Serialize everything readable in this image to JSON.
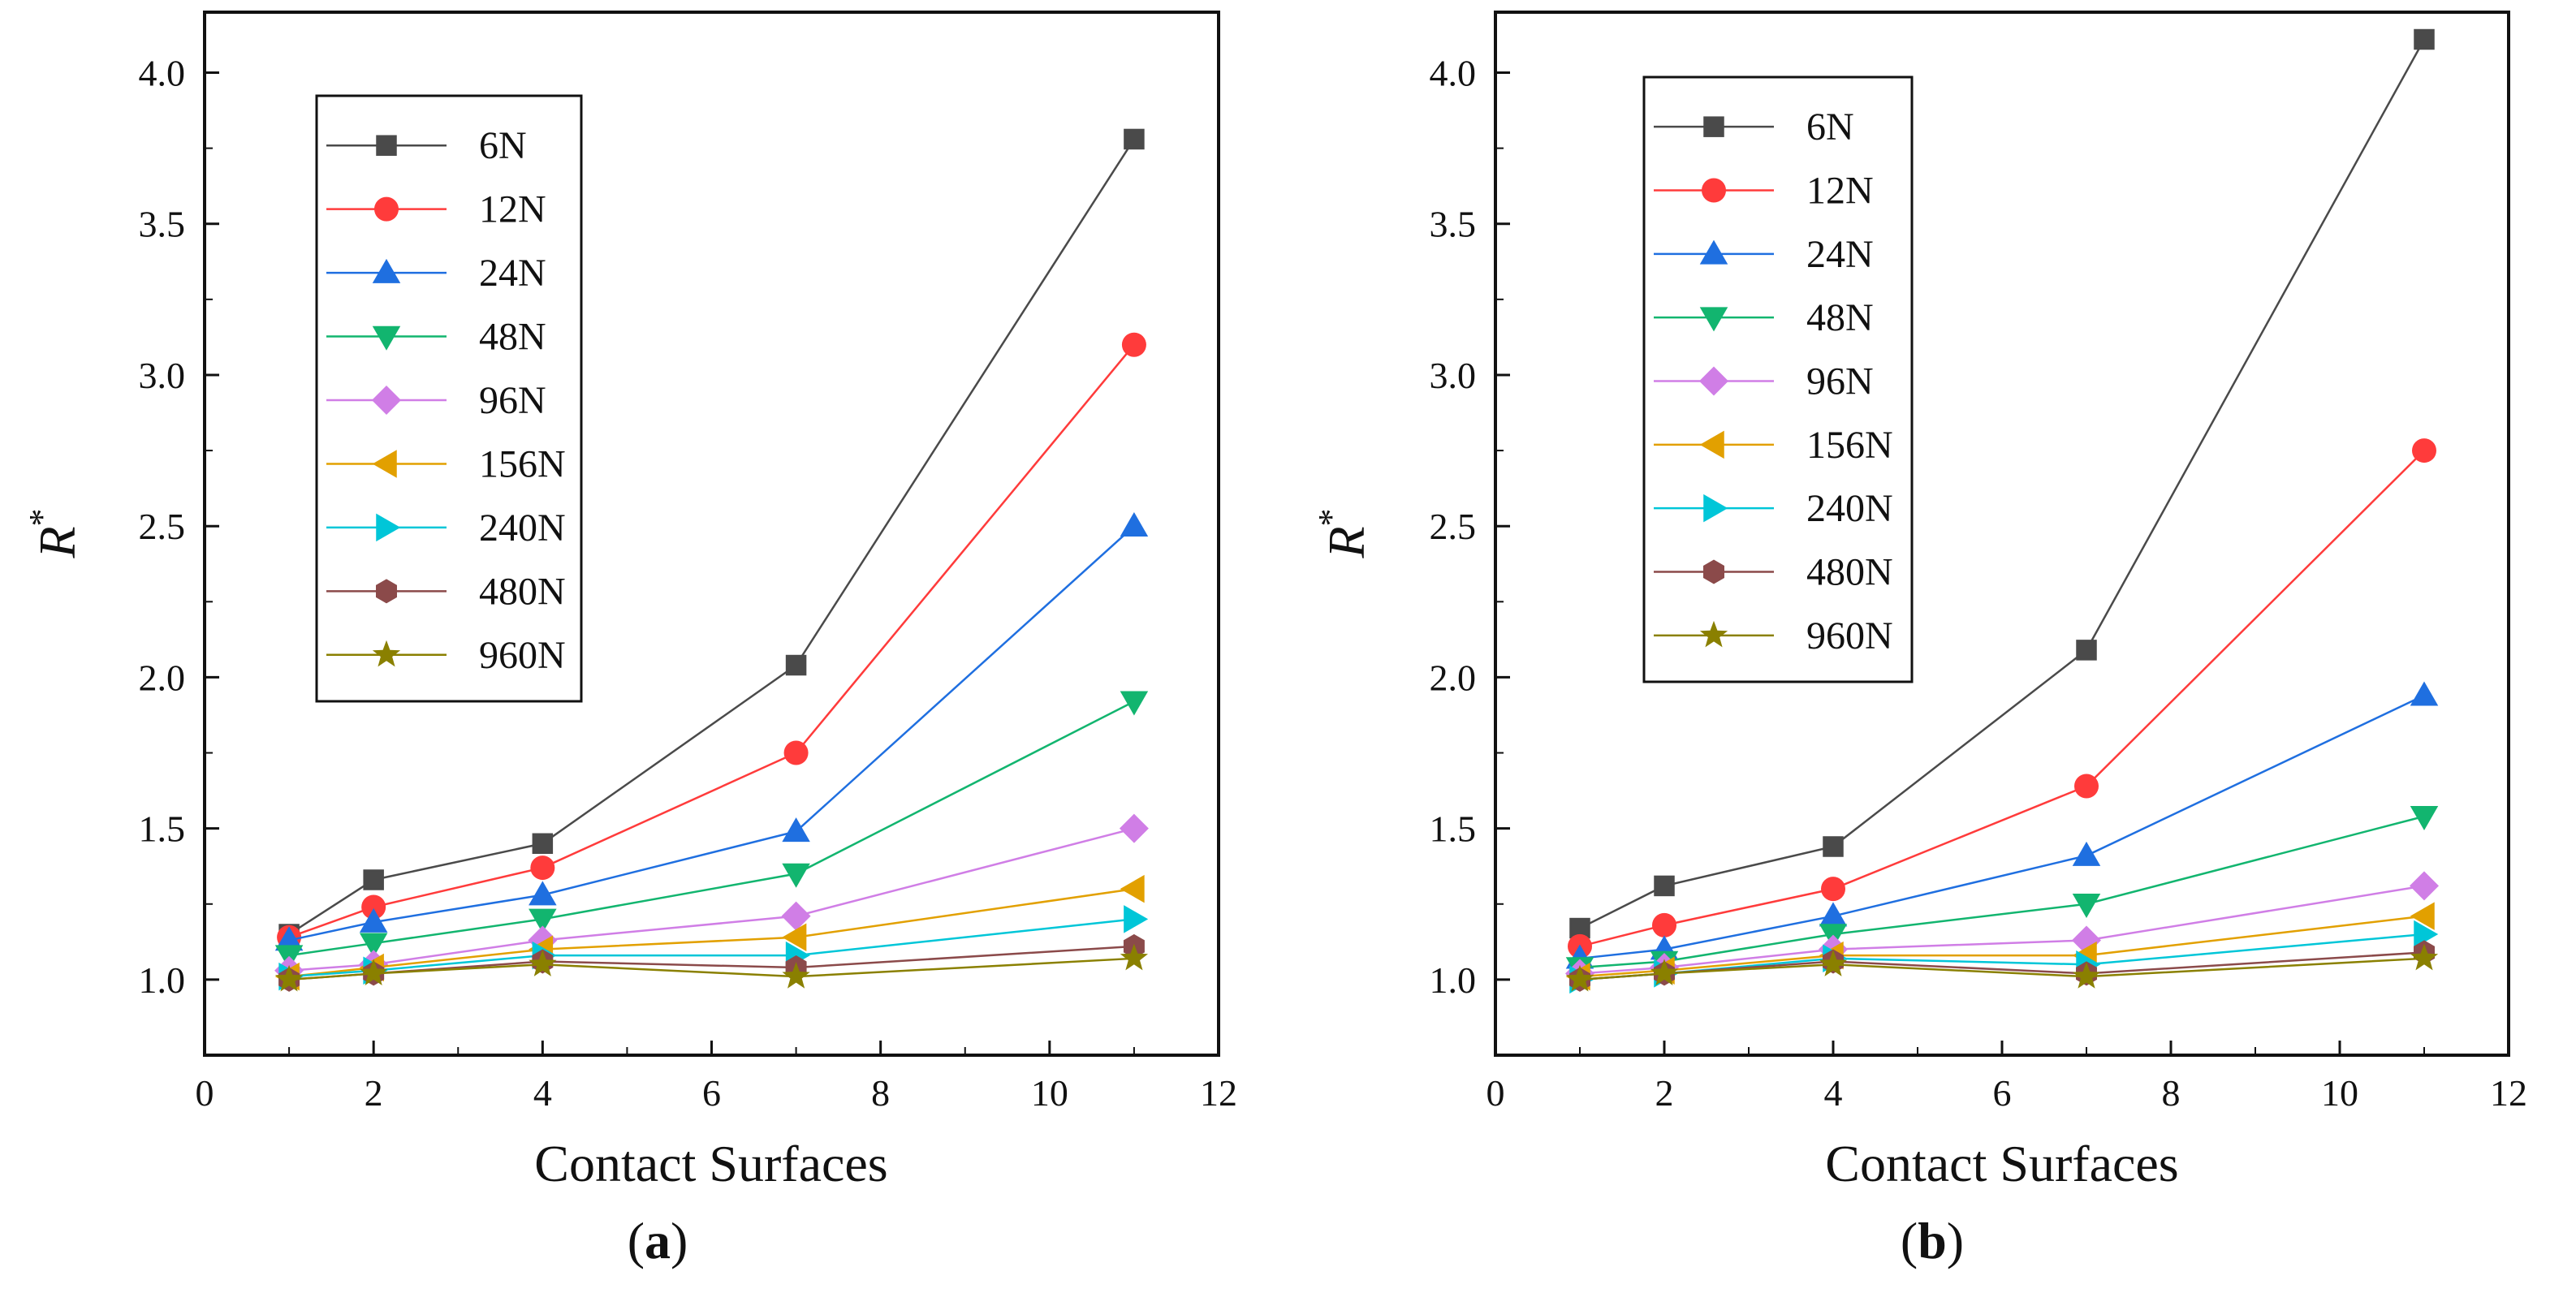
{
  "chart_data": [
    {
      "type": "line",
      "panel_label_prefix": "(",
      "panel_label_letter": "a",
      "panel_label_suffix": ")",
      "xlabel": "Contact Surfaces",
      "ylabel_main": "R",
      "ylabel_sup": "*",
      "xlim": [
        0,
        12
      ],
      "ylim": [
        0.75,
        4.2
      ],
      "xticks": [
        0,
        2,
        4,
        6,
        8,
        10,
        12
      ],
      "yticks": [
        1.0,
        1.5,
        2.0,
        2.5,
        3.0,
        3.5,
        4.0
      ],
      "legend_position": "top-left",
      "x": [
        1,
        2,
        4,
        7,
        11
      ],
      "series": [
        {
          "name": "6N",
          "color": "#4a4a4a",
          "marker": "square",
          "values": [
            1.15,
            1.33,
            1.45,
            2.04,
            3.78
          ]
        },
        {
          "name": "12N",
          "color": "#ff3b3b",
          "marker": "circle",
          "values": [
            1.14,
            1.24,
            1.37,
            1.75,
            3.1
          ]
        },
        {
          "name": "24N",
          "color": "#1f6fe0",
          "marker": "triangle-up",
          "values": [
            1.13,
            1.19,
            1.28,
            1.49,
            2.5
          ]
        },
        {
          "name": "48N",
          "color": "#12b56f",
          "marker": "triangle-down",
          "values": [
            1.08,
            1.12,
            1.2,
            1.35,
            1.92
          ]
        },
        {
          "name": "96N",
          "color": "#d07ee6",
          "marker": "diamond",
          "values": [
            1.03,
            1.05,
            1.13,
            1.21,
            1.5
          ]
        },
        {
          "name": "156N",
          "color": "#e2a000",
          "marker": "triangle-left",
          "values": [
            1.01,
            1.04,
            1.1,
            1.14,
            1.3
          ]
        },
        {
          "name": "240N",
          "color": "#00c6d8",
          "marker": "triangle-right",
          "values": [
            1.01,
            1.03,
            1.08,
            1.08,
            1.2
          ]
        },
        {
          "name": "480N",
          "color": "#8b4a4a",
          "marker": "hexagon",
          "values": [
            1.0,
            1.02,
            1.06,
            1.04,
            1.11
          ]
        },
        {
          "name": "960N",
          "color": "#8a8000",
          "marker": "star",
          "values": [
            1.0,
            1.02,
            1.05,
            1.01,
            1.07
          ]
        }
      ]
    },
    {
      "type": "line",
      "panel_label_prefix": "(",
      "panel_label_letter": "b",
      "panel_label_suffix": ")",
      "xlabel": "Contact Surfaces",
      "ylabel_main": "R",
      "ylabel_sup": "*",
      "xlim": [
        0,
        12
      ],
      "ylim": [
        0.75,
        4.2
      ],
      "xticks": [
        0,
        2,
        4,
        6,
        8,
        10,
        12
      ],
      "yticks": [
        1.0,
        1.5,
        2.0,
        2.5,
        3.0,
        3.5,
        4.0
      ],
      "legend_position": "top-left",
      "x": [
        1,
        2,
        4,
        7,
        11
      ],
      "series": [
        {
          "name": "6N",
          "color": "#4a4a4a",
          "marker": "square",
          "values": [
            1.17,
            1.31,
            1.44,
            2.09,
            4.11
          ]
        },
        {
          "name": "12N",
          "color": "#ff3b3b",
          "marker": "circle",
          "values": [
            1.11,
            1.18,
            1.3,
            1.64,
            2.75
          ]
        },
        {
          "name": "24N",
          "color": "#1f6fe0",
          "marker": "triangle-up",
          "values": [
            1.07,
            1.1,
            1.21,
            1.41,
            1.94
          ]
        },
        {
          "name": "48N",
          "color": "#12b56f",
          "marker": "triangle-down",
          "values": [
            1.04,
            1.06,
            1.15,
            1.25,
            1.54
          ]
        },
        {
          "name": "96N",
          "color": "#d07ee6",
          "marker": "diamond",
          "values": [
            1.02,
            1.04,
            1.1,
            1.13,
            1.31
          ]
        },
        {
          "name": "156N",
          "color": "#e2a000",
          "marker": "triangle-left",
          "values": [
            1.01,
            1.03,
            1.08,
            1.08,
            1.21
          ]
        },
        {
          "name": "240N",
          "color": "#00c6d8",
          "marker": "triangle-right",
          "values": [
            1.0,
            1.02,
            1.07,
            1.05,
            1.15
          ]
        },
        {
          "name": "480N",
          "color": "#8b4a4a",
          "marker": "hexagon",
          "values": [
            1.0,
            1.02,
            1.06,
            1.02,
            1.09
          ]
        },
        {
          "name": "960N",
          "color": "#8a8000",
          "marker": "star",
          "values": [
            1.0,
            1.02,
            1.05,
            1.01,
            1.07
          ]
        }
      ]
    }
  ]
}
